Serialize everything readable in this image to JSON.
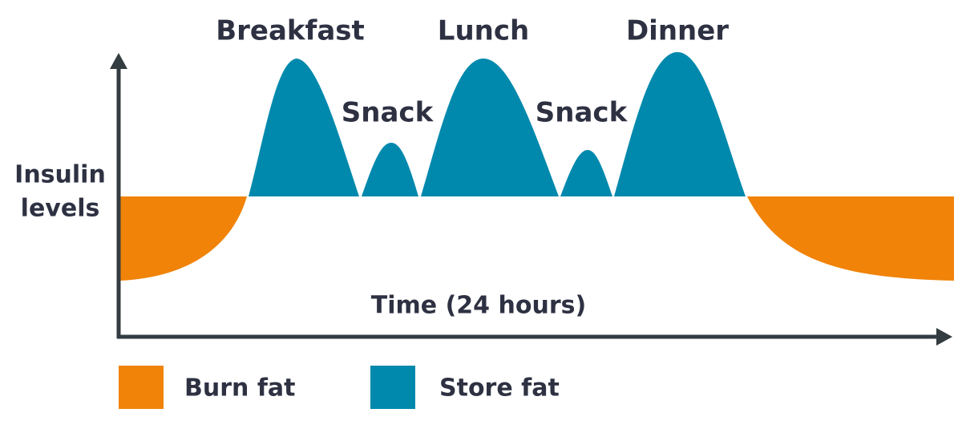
{
  "labels": {
    "y_axis": [
      "Insulin",
      "levels"
    ],
    "x_axis": "Time (24 hours)"
  },
  "peaks": [
    "Breakfast",
    "Snack",
    "Lunch",
    "Snack",
    "Dinner"
  ],
  "legend": [
    {
      "label": "Burn fat",
      "color": "#f08308"
    },
    {
      "label": "Store fat",
      "color": "#0089ad"
    }
  ]
}
